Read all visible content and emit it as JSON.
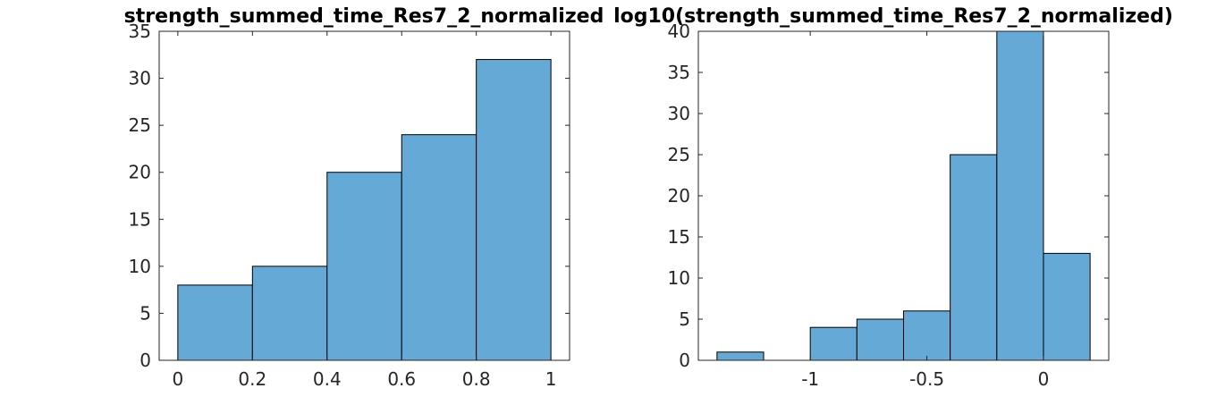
{
  "chart_data": [
    {
      "type": "bar",
      "title": "strength_summed_time_Res7_2_normalized",
      "xlabel": "",
      "ylabel": "",
      "bin_edges": [
        0,
        0.2,
        0.4,
        0.6,
        0.8,
        1.0
      ],
      "values": [
        8,
        10,
        20,
        24,
        32
      ],
      "xlim": [
        -0.05,
        1.05
      ],
      "ylim": [
        0,
        35
      ],
      "xticks": [
        0,
        0.2,
        0.4,
        0.6,
        0.8,
        1
      ],
      "xtick_labels": [
        "0",
        "0.2",
        "0.4",
        "0.6",
        "0.8",
        "1"
      ],
      "yticks": [
        0,
        5,
        10,
        15,
        20,
        25,
        30,
        35
      ],
      "ytick_labels": [
        "0",
        "5",
        "10",
        "15",
        "20",
        "25",
        "30",
        "35"
      ],
      "grid": false,
      "bar_color": "#65a9d7"
    },
    {
      "type": "bar",
      "title": "log10(strength_summed_time_Res7_2_normalized)",
      "xlabel": "",
      "ylabel": "",
      "bin_edges": [
        -1.4,
        -1.2,
        -1.0,
        -0.8,
        -0.6,
        -0.4,
        -0.2,
        0.0,
        0.2
      ],
      "values": [
        1,
        0,
        4,
        5,
        6,
        25,
        40,
        13
      ],
      "xlim": [
        -1.48,
        0.28
      ],
      "ylim": [
        0,
        40
      ],
      "xticks": [
        -1,
        -0.5,
        0
      ],
      "xtick_labels": [
        "-1",
        "-0.5",
        "0"
      ],
      "yticks": [
        0,
        5,
        10,
        15,
        20,
        25,
        30,
        35,
        40
      ],
      "ytick_labels": [
        "0",
        "5",
        "10",
        "15",
        "20",
        "25",
        "30",
        "35",
        "40"
      ],
      "grid": false,
      "bar_color": "#65a9d7"
    }
  ]
}
